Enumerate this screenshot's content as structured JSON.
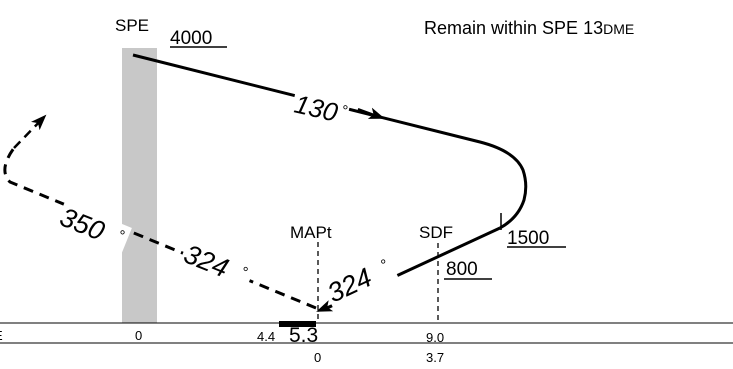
{
  "top_note": {
    "text": "Remain within SPE 13",
    "suffix": "DME"
  },
  "fixes": {
    "spe": "SPE",
    "mapt": "MAPt",
    "sdf": "SDF"
  },
  "altitudes": {
    "spe": "4000",
    "turn": "1500",
    "sdf": "800"
  },
  "courses": {
    "outbound": "130",
    "hold_return": "350",
    "missed_inbound": "324",
    "final": "324",
    "degree_symbol": "°"
  },
  "profile_scale": {
    "row_label": "E",
    "dme_row": [
      "0",
      "4.4",
      "5.3",
      "9.0"
    ],
    "map_row": [
      "0",
      "3.7"
    ]
  }
}
